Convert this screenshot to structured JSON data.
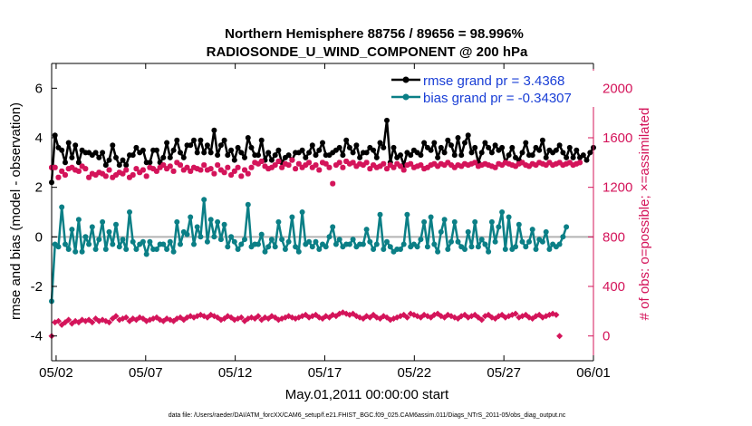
{
  "chart_data": {
    "type": "line",
    "title_line1": "Northern Hemisphere 88756 / 89656 = 98.996%",
    "title_line2": "RADIOSONDE_U_WIND_COMPONENT @ 200 hPa",
    "xlabel": "May.01,2011 00:00:00 start",
    "ylabel_left": "rmse and bias (model - observation)",
    "ylabel_right": "# of obs: o=possible; ×=assimilated",
    "x_tick_labels": [
      "05/02",
      "05/07",
      "05/12",
      "05/17",
      "05/22",
      "05/27",
      "06/01"
    ],
    "x_tick_days": [
      1,
      6,
      11,
      16,
      21,
      26,
      31
    ],
    "xlim_days": [
      0.75,
      31
    ],
    "ylim_left": [
      -5,
      7
    ],
    "yticks_left": [
      "-4",
      "-2",
      "0",
      "2",
      "4",
      "6"
    ],
    "ylim_right": [
      -200,
      2200
    ],
    "yticks_right": [
      "0",
      "400",
      "800",
      "1200",
      "1600",
      "2000"
    ],
    "colors": {
      "rmse": "#000000",
      "bias": "#0b7f86",
      "possible": "#d4145a",
      "assimilated": "#d4145a",
      "right_axis": "#d4145a",
      "zero_line": "#b3b3b3"
    },
    "legend": [
      "rmse grand pr = 3.4368",
      "bias grand pr = -0.34307"
    ],
    "series": [
      {
        "name": "rmse",
        "color": "#000000",
        "values": [
          2.2,
          4.1,
          3.6,
          3.5,
          3.0,
          3.8,
          3.2,
          3.7,
          3.0,
          3.5,
          3.4,
          3.4,
          3.3,
          3.4,
          3.2,
          3.4,
          2.9,
          3.1,
          3.7,
          3.2,
          2.9,
          3.1,
          2.9,
          3.3,
          3.3,
          3.6,
          3.4,
          3.5,
          3.0,
          3.0,
          3.5,
          3.5,
          3.0,
          3.2,
          3.8,
          3.2,
          3.5,
          3.9,
          3.4,
          3.2,
          3.7,
          3.7,
          3.9,
          3.4,
          3.9,
          3.4,
          3.7,
          3.4,
          4.3,
          3.3,
          3.7,
          3.9,
          3.3,
          3.5,
          3.1,
          3.6,
          3.4,
          3.2,
          4.0,
          3.6,
          3.3,
          3.3,
          3.9,
          3.1,
          3.4,
          3.1,
          3.3,
          3.5,
          3.0,
          3.2,
          3.3,
          3.1,
          3.4,
          3.4,
          3.5,
          3.2,
          3.4,
          3.7,
          3.3,
          3.5,
          3.8,
          3.3,
          3.3,
          3.4,
          3.5,
          3.6,
          3.3,
          3.9,
          3.6,
          3.4,
          3.7,
          3.2,
          3.4,
          3.4,
          3.6,
          3.5,
          3.2,
          3.8,
          3.6,
          4.7,
          3.0,
          3.6,
          3.2,
          3.3,
          2.9,
          3.4,
          3.3,
          3.5,
          3.4,
          3.3,
          3.8,
          3.6,
          3.5,
          3.8,
          3.2,
          3.6,
          3.4,
          3.9,
          3.7,
          3.3,
          4.0,
          3.3,
          3.8,
          4.1,
          3.4,
          3.6,
          3.0,
          3.4,
          3.8,
          3.6,
          3.4,
          3.7,
          3.5,
          3.6,
          3.0,
          3.3,
          3.6,
          3.2,
          3.1,
          3.4,
          3.8,
          3.3,
          3.3,
          3.6,
          3.5,
          3.9,
          3.2,
          3.5,
          3.4,
          3.5,
          3.7,
          3.4,
          3.2,
          3.6,
          3.2,
          3.5,
          3.2,
          3.3,
          3.1,
          3.4,
          3.6
        ]
      },
      {
        "name": "bias",
        "color": "#0b7f86",
        "values": [
          -2.6,
          -0.3,
          -0.4,
          1.2,
          -0.3,
          -0.5,
          0.3,
          -0.6,
          0.7,
          -0.6,
          0.0,
          -0.3,
          0.4,
          -0.5,
          -0.1,
          0.6,
          -0.5,
          0.2,
          -0.3,
          0.5,
          -0.4,
          -0.1,
          -0.5,
          1.0,
          -0.2,
          -0.5,
          -0.3,
          -0.2,
          -0.7,
          -0.2,
          -0.5,
          -0.5,
          -0.3,
          -0.3,
          -0.5,
          -0.2,
          -0.6,
          0.6,
          -0.3,
          0.2,
          0.1,
          0.8,
          -0.3,
          0.4,
          0.0,
          1.5,
          -0.2,
          0.7,
          0.0,
          0.6,
          -0.1,
          0.5,
          -0.4,
          0.0,
          -0.2,
          -0.5,
          -0.3,
          -0.1,
          1.3,
          -0.4,
          -0.3,
          -0.3,
          0.1,
          -0.6,
          -0.4,
          -0.1,
          -0.4,
          0.6,
          -0.1,
          -0.5,
          -0.2,
          0.8,
          -0.4,
          -0.6,
          1.0,
          -0.3,
          -0.2,
          -0.4,
          -0.2,
          -0.5,
          -0.3,
          -0.4,
          0.0,
          0.4,
          -0.3,
          -0.1,
          -0.4,
          -0.3,
          -0.3,
          -0.1,
          -0.4,
          -0.3,
          -0.3,
          0.3,
          -0.2,
          -0.5,
          -0.3,
          0.9,
          -0.5,
          -0.2,
          -0.4,
          -0.6,
          -0.5,
          -0.5,
          -0.3,
          0.9,
          -0.4,
          -0.3,
          -0.4,
          -0.1,
          0.6,
          -0.4,
          0.8,
          -0.3,
          -0.6,
          0.2,
          0.7,
          -0.5,
          -0.2,
          0.6,
          -0.2,
          -0.4,
          -0.5,
          0.2,
          -0.4,
          0.6,
          -0.4,
          -0.1,
          -0.3,
          -0.6,
          0.6,
          -0.2,
          0.4,
          1.0,
          -0.5,
          0.8,
          -0.5,
          -0.4,
          0.5,
          -0.2,
          -0.4,
          -0.2,
          0.3,
          -0.5,
          -0.1,
          -0.2,
          0.2,
          -0.5,
          -0.3,
          -0.4,
          -0.3,
          0.0,
          0.4
        ]
      },
      {
        "name": "possible",
        "color": "#d4145a",
        "values": [
          0,
          110,
          120,
          90,
          110,
          130,
          100,
          120,
          110,
          130,
          120,
          130,
          110,
          140,
          120,
          130,
          120,
          110,
          140,
          160,
          130,
          140,
          150,
          120,
          140,
          130,
          150,
          140,
          120,
          130,
          140,
          150,
          130,
          120,
          140,
          130,
          120,
          140,
          150,
          130,
          150,
          160,
          150,
          160,
          170,
          160,
          150,
          170,
          160,
          150,
          130,
          140,
          160,
          150,
          130,
          140,
          150,
          120,
          140,
          150,
          140,
          160,
          130,
          150,
          140,
          160,
          150,
          130,
          140,
          150,
          160,
          150,
          140,
          150,
          160,
          170,
          150,
          160,
          170,
          150,
          140,
          160,
          150,
          170,
          160,
          180,
          190,
          180,
          170,
          180,
          160,
          150,
          140,
          160,
          150,
          170,
          150,
          140,
          160,
          150,
          130,
          140,
          150,
          160,
          170,
          150,
          180,
          170,
          160,
          150,
          170,
          160,
          150,
          170,
          180,
          160,
          150,
          170,
          160,
          150,
          140,
          160,
          170,
          150,
          160,
          170,
          150,
          130,
          160,
          170,
          150,
          140,
          160,
          170,
          150,
          160,
          170,
          180,
          150,
          160,
          170,
          150,
          140,
          160,
          170,
          150,
          160,
          170,
          180,
          170,
          0
        ]
      },
      {
        "name": "assimilated",
        "color": "#d4145a",
        "values": [
          1360,
          1360,
          1280,
          1330,
          1300,
          1350,
          1360,
          1340,
          1330,
          1370,
          1350,
          1280,
          1310,
          1300,
          1320,
          1310,
          1290,
          1340,
          1280,
          1300,
          1320,
          1310,
          1340,
          1280,
          1300,
          1350,
          1320,
          1340,
          1290,
          1360,
          1350,
          1330,
          1360,
          1380,
          1350,
          1370,
          1330,
          1400,
          1380,
          1340,
          1360,
          1330,
          1360,
          1350,
          1340,
          1380,
          1340,
          1350,
          1310,
          1380,
          1340,
          1320,
          1360,
          1300,
          1330,
          1360,
          1290,
          1340,
          1310,
          1360,
          1400,
          1390,
          1410,
          1370,
          1350,
          1360,
          1380,
          1410,
          1360,
          1390,
          1380,
          1420,
          1350,
          1390,
          1360,
          1380,
          1400,
          1360,
          1380,
          1340,
          1400,
          1390,
          1360,
          1230,
          1380,
          1400,
          1360,
          1410,
          1390,
          1400,
          1370,
          1390,
          1380,
          1400,
          1350,
          1380,
          1360,
          1370,
          1390,
          1350,
          1380,
          1360,
          1390,
          1370,
          1340,
          1380,
          1390,
          1360,
          1370,
          1380,
          1350,
          1360,
          1380,
          1390,
          1370,
          1390,
          1380,
          1400,
          1380,
          1360,
          1380,
          1370,
          1390,
          1380,
          1390,
          1400,
          1370,
          1380,
          1390,
          1380,
          1370,
          1360,
          1390,
          1380,
          1400,
          1390,
          1380,
          1370,
          1390,
          1400,
          1380,
          1370,
          1390,
          1380,
          1400,
          1390,
          1380,
          1400,
          1380,
          1390,
          1400,
          1380,
          1390,
          1400,
          1380,
          1390,
          1400
        ]
      }
    ]
  },
  "footer": "data file: /Users/raeder/DAI/ATM_forcXX/CAM6_setup/f.e21.FHIST_BGC.f09_025.CAM6assim.011/Diags_NTrS_2011-05/obs_diag_output.nc"
}
